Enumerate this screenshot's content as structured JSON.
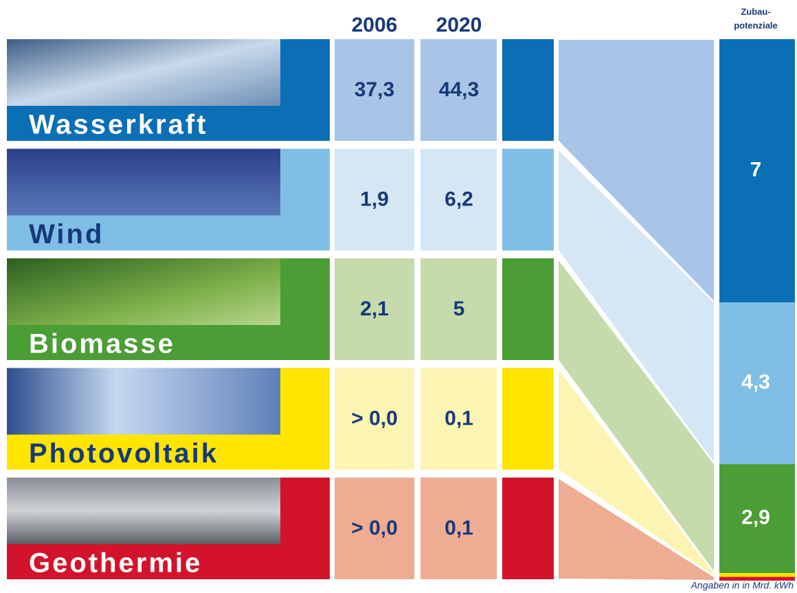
{
  "header": {
    "years": [
      "2006",
      "2020"
    ],
    "potential_title": [
      "Zubau-",
      "potenziale"
    ]
  },
  "rows": [
    {
      "name": "Wasserkraft",
      "v2006": "37,3",
      "v2020": "44,3",
      "color": "#0b6fb6",
      "light": "#a8c5e7",
      "text_color": "#ffffff"
    },
    {
      "name": "Wind",
      "v2006": "1,9",
      "v2020": "6,2",
      "color": "#80bee6",
      "light": "#d5e6f5",
      "text_color": "#16397a"
    },
    {
      "name": "Biomasse",
      "v2006": "2,1",
      "v2020": "5",
      "color": "#4b9d35",
      "light": "#c6dbab",
      "text_color": "#ffffff"
    },
    {
      "name": "Photovoltaik",
      "v2006": "> 0,0",
      "v2020": "0,1",
      "color": "#ffe500",
      "light": "#fcf4b2",
      "text_color": "#16397a"
    },
    {
      "name": "Geothermie",
      "v2006": "> 0,0",
      "v2020": "0,1",
      "color": "#d3132b",
      "light": "#eeac93",
      "text_color": "#ffffff"
    }
  ],
  "potential": {
    "values": [
      7,
      4.3,
      2.9,
      0.1,
      0.1
    ],
    "value_labels": [
      "7",
      "4,3",
      "2,9",
      null,
      null
    ]
  },
  "footnote": "Angaben in in Mrd. kWh"
}
